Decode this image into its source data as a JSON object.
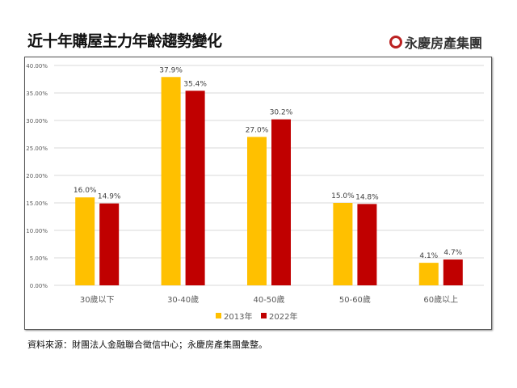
{
  "title": "近十年購屋主力年齡趨勢變化",
  "logo_text": "永慶房產集團",
  "source": "資料來源：財團法人金融聯合徵信中心；永慶房產集團彙整。",
  "chart_data": {
    "type": "bar",
    "categories": [
      "30歲以下",
      "30-40歲",
      "40-50歲",
      "50-60歲",
      "60歲以上"
    ],
    "series": [
      {
        "name": "2013年",
        "color": "#FFC000",
        "values": [
          16.0,
          37.9,
          27.0,
          15.0,
          4.1
        ]
      },
      {
        "name": "2022年",
        "color": "#C00000",
        "values": [
          14.9,
          35.4,
          30.2,
          14.8,
          4.7
        ]
      }
    ],
    "ylim": [
      0,
      40
    ],
    "yticks": [
      "0.00%",
      "5.00%",
      "10.00%",
      "15.00%",
      "20.00%",
      "25.00%",
      "30.00%",
      "35.00%",
      "40.00%"
    ],
    "grid": true,
    "legend": "bottom"
  }
}
